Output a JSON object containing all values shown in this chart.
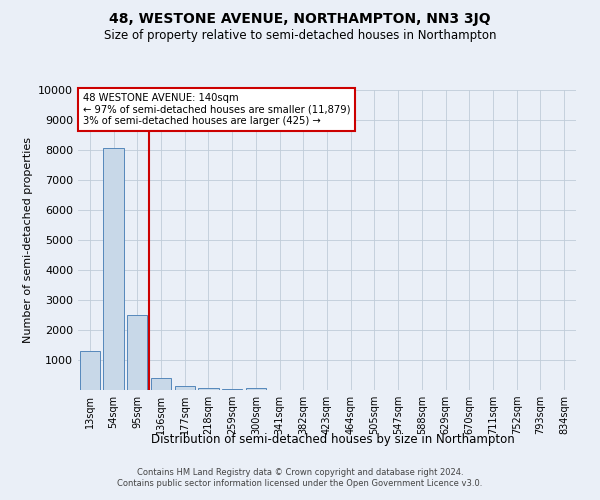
{
  "title": "48, WESTONE AVENUE, NORTHAMPTON, NN3 3JQ",
  "subtitle": "Size of property relative to semi-detached houses in Northampton",
  "xlabel": "Distribution of semi-detached houses by size in Northampton",
  "ylabel": "Number of semi-detached properties",
  "footer_line1": "Contains HM Land Registry data © Crown copyright and database right 2024.",
  "footer_line2": "Contains public sector information licensed under the Open Government Licence v3.0.",
  "annotation_line1": "48 WESTONE AVENUE: 140sqm",
  "annotation_line2": "← 97% of semi-detached houses are smaller (11,879)",
  "annotation_line3": "3% of semi-detached houses are larger (425) →",
  "categories": [
    "13sqm",
    "54sqm",
    "95sqm",
    "136sqm",
    "177sqm",
    "218sqm",
    "259sqm",
    "300sqm",
    "341sqm",
    "382sqm",
    "423sqm",
    "464sqm",
    "505sqm",
    "547sqm",
    "588sqm",
    "629sqm",
    "670sqm",
    "711sqm",
    "752sqm",
    "793sqm",
    "834sqm"
  ],
  "values": [
    1300,
    8050,
    2500,
    400,
    130,
    80,
    50,
    80,
    0,
    0,
    0,
    0,
    0,
    0,
    0,
    0,
    0,
    0,
    0,
    0,
    0
  ],
  "bar_color": "#c8d8e8",
  "bar_edge_color": "#5588bb",
  "property_line_color": "#cc0000",
  "property_line_x": 2.5,
  "ylim": [
    0,
    10000
  ],
  "yticks": [
    0,
    1000,
    2000,
    3000,
    4000,
    5000,
    6000,
    7000,
    8000,
    9000,
    10000
  ],
  "background_color": "#eaeff7",
  "plot_bg_color": "#eaeff7",
  "grid_color": "#c0ccd8",
  "annotation_box_edge_color": "#cc0000",
  "annotation_box_face_color": "#ffffff",
  "title_fontsize": 10,
  "subtitle_fontsize": 8.5,
  "ylabel_fontsize": 8,
  "xlabel_fontsize": 8.5,
  "ytick_fontsize": 8,
  "xtick_fontsize": 7,
  "footer_fontsize": 6
}
